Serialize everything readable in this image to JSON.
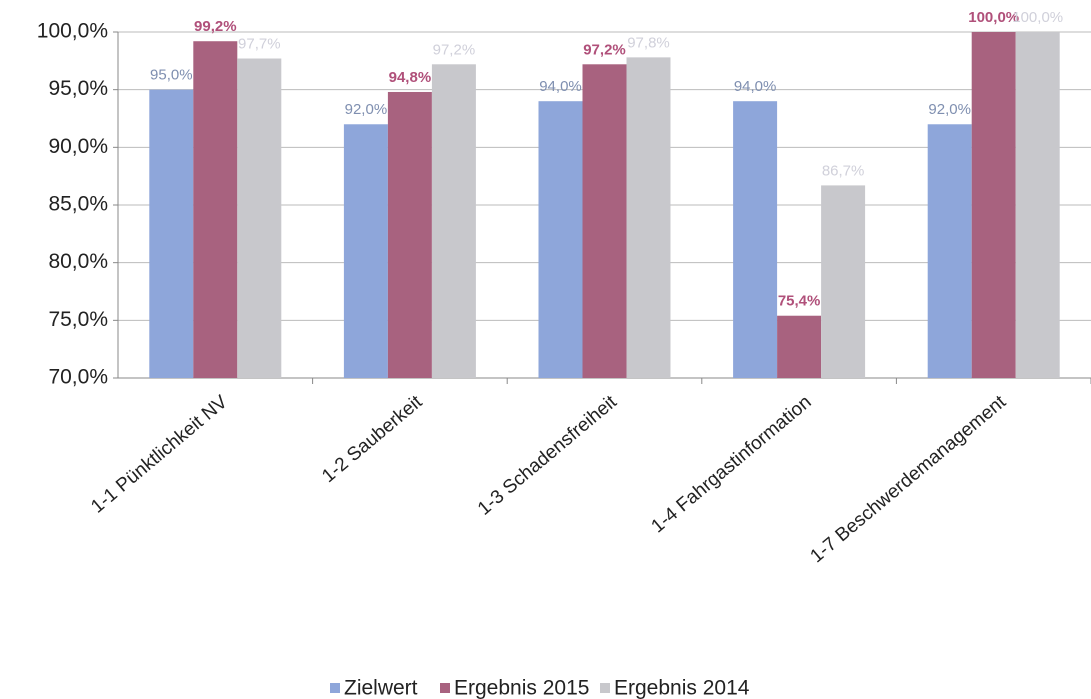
{
  "chart_data": {
    "type": "bar",
    "categories": [
      "1-1 Pünktlichkeit NV",
      "1-2 Sauberkeit",
      "1-3 Schadensfreiheit",
      "1-4 Fahrgastinformation",
      "1-7 Beschwerdemanagement"
    ],
    "series": [
      {
        "name": "Zielwert",
        "color": "#8ea6da",
        "values": [
          95,
          92,
          94,
          94,
          92
        ],
        "value_labels": [
          "95,0%",
          "92,0%",
          "94,0%",
          "94,0%",
          "92,0%"
        ]
      },
      {
        "name": "Ergebnis 2015",
        "color": "#a8627f",
        "values": [
          99.2,
          94.8,
          97.2,
          75.4,
          100
        ],
        "value_labels": [
          "99,2%",
          "94,8%",
          "97,2%",
          "75,4%",
          "100,0%"
        ]
      },
      {
        "name": "Ergebnis 2014",
        "color": "#c8c8cc",
        "values": [
          97.7,
          97.2,
          97.8,
          86.7,
          100
        ],
        "value_labels": [
          "97,7%",
          "97,2%",
          "97,8%",
          "86,7%",
          "100,0%"
        ]
      }
    ],
    "ylim": [
      70,
      100
    ],
    "yticks": [
      {
        "value": 70,
        "label": "70,0%"
      },
      {
        "value": 75,
        "label": "75,0%"
      },
      {
        "value": 80,
        "label": "80,0%"
      },
      {
        "value": 85,
        "label": "85,0%"
      },
      {
        "value": 90,
        "label": "90,0%"
      },
      {
        "value": 95,
        "label": "95,0%"
      },
      {
        "value": 100,
        "label": "100,0%"
      }
    ],
    "grid": true,
    "legend": "bottom"
  }
}
